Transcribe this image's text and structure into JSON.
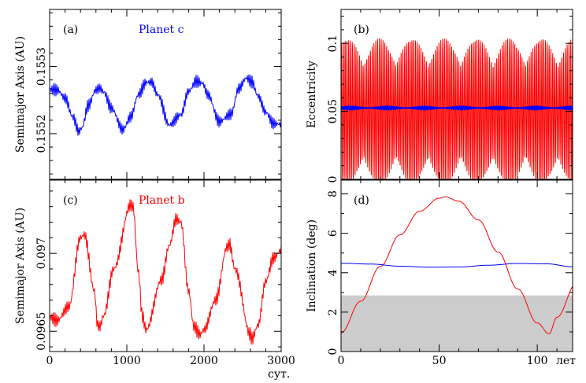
{
  "chart_data": [
    {
      "type": "line",
      "panel_label": "(a)",
      "annotation": "Planet c",
      "annotation_color": "#0000ff",
      "ylabel": "Semimajor Axis (AU)",
      "xlim": [
        0,
        3000
      ],
      "ylim": [
        0.155132,
        0.155385
      ],
      "yticks": [
        0.1552,
        0.1553
      ],
      "ytick_labels": [
        "0.1552",
        "0.1553"
      ],
      "xticks": [
        0,
        1000,
        2000,
        3000
      ],
      "series": [
        {
          "color": "#0000ff",
          "oscillation_amplitude": 9.5e-06,
          "oscillation_period": 22,
          "x": [
            0,
            100,
            200,
            300,
            380,
            420,
            500,
            600,
            650,
            700,
            800,
            950,
            1050,
            1150,
            1250,
            1320,
            1400,
            1550,
            1700,
            1800,
            1900,
            1980,
            2050,
            2200,
            2350,
            2450,
            2550,
            2620,
            2700,
            2800,
            2900,
            3000
          ],
          "y": [
            0.155266,
            0.155265,
            0.155253,
            0.155225,
            0.155203,
            0.155209,
            0.155242,
            0.155265,
            0.155268,
            0.155262,
            0.155238,
            0.155206,
            0.155225,
            0.155258,
            0.155276,
            0.155277,
            0.155258,
            0.155213,
            0.155228,
            0.155263,
            0.155278,
            0.155275,
            0.155258,
            0.155218,
            0.155229,
            0.155267,
            0.155283,
            0.155277,
            0.155256,
            0.155232,
            0.155215,
            0.155214
          ]
        }
      ]
    },
    {
      "type": "line",
      "panel_label": "(b)",
      "ylabel": "Eccentricity",
      "xlim": [
        0,
        118
      ],
      "ylim": [
        0,
        0.125
      ],
      "yticks": [
        0,
        0.05,
        0.1
      ],
      "ytick_labels": [
        "0",
        "0.05",
        "0.1"
      ],
      "series": [
        {
          "color": "#ff0000",
          "y_mean": 0.05,
          "envelope_max": 0.107,
          "envelope_min": 0.0,
          "beat_period": 16.5,
          "oscillation_period": 0.92
        },
        {
          "color": "#0000ff",
          "y_mean": 0.0525,
          "oscillation_amplitude": 0.0015
        }
      ]
    },
    {
      "type": "line",
      "panel_label": "(c)",
      "annotation": "Planet b",
      "annotation_color": "#ff0000",
      "ylabel": "Semimajor Axis (AU)",
      "xlim": [
        0,
        3000
      ],
      "ylim": [
        0.09637,
        0.09747
      ],
      "yticks": [
        0.0965,
        0.097
      ],
      "ytick_labels": [
        "0.0965",
        "0.097"
      ],
      "xticks": [
        0,
        1000,
        2000,
        3000
      ],
      "xtick_labels": [
        "0",
        "1000",
        "2000",
        "3000"
      ],
      "xunit": "сут.",
      "series": [
        {
          "color": "#ff0000",
          "oscillation_amplitude": 4.5e-05,
          "oscillation_period": 22,
          "x": [
            0,
            100,
            250,
            400,
            450,
            580,
            620,
            650,
            700,
            830,
            1050,
            1080,
            1150,
            1200,
            1250,
            1450,
            1550,
            1640,
            1700,
            1800,
            1870,
            1950,
            2000,
            2150,
            2300,
            2330,
            2400,
            2600,
            2620,
            2700,
            2800,
            2900,
            3000
          ],
          "y": [
            0.09659,
            0.09657,
            0.09666,
            0.0971,
            0.09712,
            0.09676,
            0.09654,
            0.09653,
            0.0966,
            0.0969,
            0.09731,
            0.0973,
            0.09688,
            0.0966,
            0.09651,
            0.09683,
            0.09705,
            0.09722,
            0.0972,
            0.09676,
            0.09653,
            0.09648,
            0.09651,
            0.0967,
            0.09704,
            0.09706,
            0.0969,
            0.09648,
            0.09645,
            0.09654,
            0.09682,
            0.09697,
            0.09702
          ]
        }
      ]
    },
    {
      "type": "line",
      "panel_label": "(d)",
      "ylabel": "Inclination (deg)",
      "xlim": [
        0,
        118
      ],
      "ylim": [
        0,
        8.7
      ],
      "yticks": [
        0,
        2,
        4,
        6,
        8
      ],
      "ytick_labels": [
        "0",
        "2",
        "4",
        "6",
        "8"
      ],
      "xticks": [
        0,
        50,
        100
      ],
      "xtick_labels": [
        "0",
        "50",
        "100"
      ],
      "xunit": "лет",
      "shaded_region": {
        "y_from": 0,
        "y_to": 2.85,
        "color": "#cccccc"
      },
      "series": [
        {
          "color": "#ff0000",
          "x": [
            0,
            10,
            20,
            30,
            40,
            50,
            53,
            60,
            70,
            80,
            90,
            100,
            106,
            110,
            120
          ],
          "y": [
            0.95,
            2.55,
            4.32,
            5.92,
            7.12,
            7.78,
            7.85,
            7.63,
            6.68,
            5.05,
            3.18,
            1.45,
            0.9,
            1.74,
            3.48
          ]
        },
        {
          "color": "#0000ff",
          "x": [
            0,
            15,
            30,
            45,
            60,
            75,
            90,
            105,
            118
          ],
          "y": [
            4.48,
            4.44,
            4.33,
            4.28,
            4.29,
            4.38,
            4.47,
            4.45,
            4.3
          ]
        }
      ]
    }
  ]
}
